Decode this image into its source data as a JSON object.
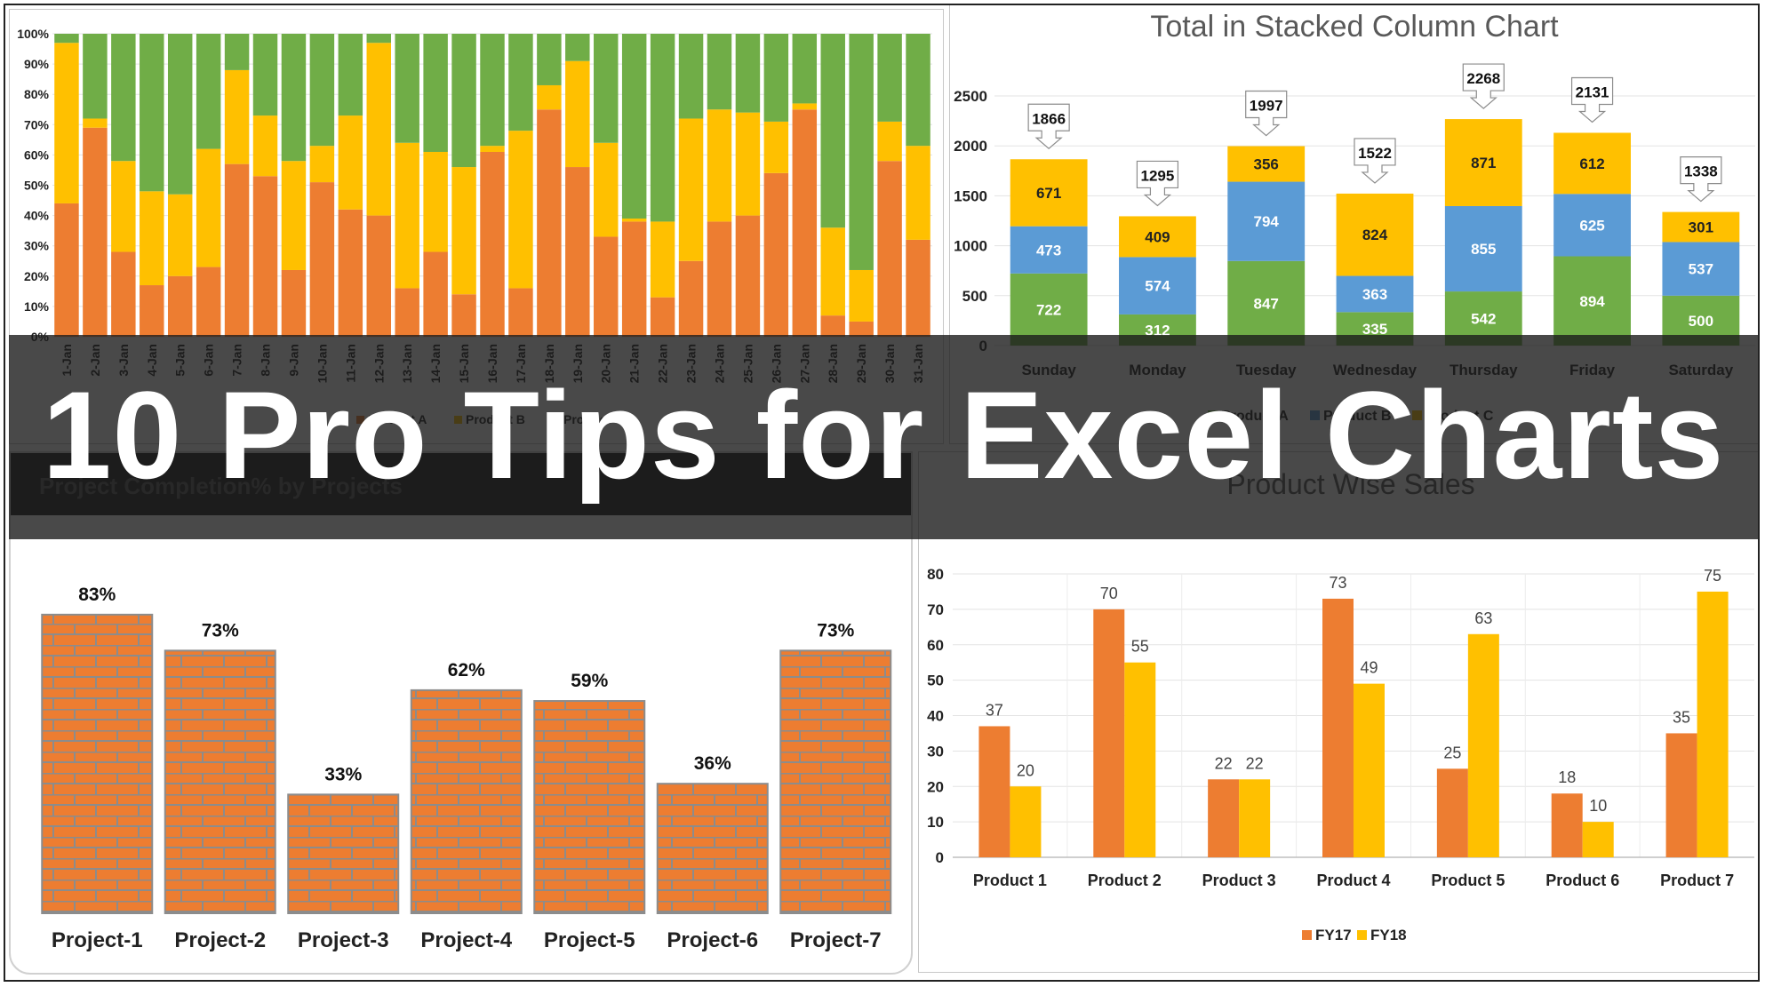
{
  "banner": {
    "title": "10 Pro Tips for Excel Charts"
  },
  "colors": {
    "orange": "#ED7D31",
    "yellow": "#FFC000",
    "green": "#70AD47",
    "blue": "#5B9BD5",
    "brick": "#ED7D31",
    "mortar": "#8C8C8C"
  },
  "chart_data": [
    {
      "type": "bar",
      "stacking": "percent",
      "title": "",
      "categories": [
        "1-Jan",
        "2-Jan",
        "3-Jan",
        "4-Jan",
        "5-Jan",
        "6-Jan",
        "7-Jan",
        "8-Jan",
        "9-Jan",
        "10-Jan",
        "11-Jan",
        "12-Jan",
        "13-Jan",
        "14-Jan",
        "15-Jan",
        "16-Jan",
        "17-Jan",
        "18-Jan",
        "19-Jan",
        "20-Jan",
        "21-Jan",
        "22-Jan",
        "23-Jan",
        "24-Jan",
        "25-Jan",
        "26-Jan",
        "27-Jan",
        "28-Jan",
        "29-Jan",
        "30-Jan",
        "31-Jan"
      ],
      "yticks": [
        "0%",
        "10%",
        "20%",
        "30%",
        "40%",
        "50%",
        "60%",
        "70%",
        "80%",
        "90%",
        "100%"
      ],
      "ylim": [
        0,
        100
      ],
      "legend_position": "bottom",
      "series": [
        {
          "name": "Product A",
          "color": "#ED7D31",
          "values": [
            44,
            69,
            28,
            17,
            20,
            23,
            57,
            53,
            22,
            51,
            42,
            40,
            16,
            28,
            14,
            61,
            16,
            75,
            56,
            33,
            38,
            13,
            25,
            38,
            40,
            54,
            75,
            7,
            5,
            58,
            32
          ]
        },
        {
          "name": "Product B",
          "color": "#FFC000",
          "values": [
            53,
            3,
            30,
            31,
            27,
            39,
            31,
            20,
            36,
            12,
            31,
            57,
            48,
            33,
            42,
            2,
            52,
            8,
            35,
            31,
            1,
            25,
            47,
            37,
            34,
            17,
            2,
            29,
            17,
            13,
            31
          ]
        },
        {
          "name": "Product C",
          "color": "#70AD47",
          "values": [
            3,
            28,
            42,
            52,
            53,
            38,
            12,
            27,
            42,
            37,
            27,
            3,
            36,
            39,
            44,
            37,
            32,
            17,
            9,
            36,
            61,
            62,
            28,
            25,
            26,
            29,
            23,
            64,
            78,
            29,
            37
          ]
        }
      ]
    },
    {
      "type": "bar",
      "stacking": "normal",
      "title": "Total in Stacked Column Chart",
      "categories": [
        "Sunday",
        "Monday",
        "Tuesday",
        "Wednesday",
        "Thursday",
        "Friday",
        "Saturday"
      ],
      "yticks": [
        "0",
        "500",
        "1000",
        "1500",
        "2000",
        "2500"
      ],
      "ylim": [
        0,
        2500
      ],
      "totals": [
        1866,
        1295,
        1997,
        1522,
        2268,
        2131,
        1338
      ],
      "legend_position": "bottom",
      "series": [
        {
          "name": "Product A",
          "color": "#70AD47",
          "values": [
            722,
            312,
            847,
            335,
            542,
            894,
            500
          ]
        },
        {
          "name": "Product B",
          "color": "#5B9BD5",
          "values": [
            473,
            574,
            794,
            363,
            855,
            625,
            537
          ]
        },
        {
          "name": "Product C",
          "color": "#FFC000",
          "values": [
            671,
            409,
            356,
            824,
            871,
            612,
            301
          ]
        }
      ]
    },
    {
      "type": "bar",
      "title": "Project Completion% by Projects",
      "categories": [
        "Project-1",
        "Project-2",
        "Project-3",
        "Project-4",
        "Project-5",
        "Project-6",
        "Project-7"
      ],
      "values": [
        83,
        73,
        33,
        62,
        59,
        36,
        73
      ],
      "labels": [
        "83%",
        "73%",
        "33%",
        "62%",
        "59%",
        "36%",
        "73%"
      ],
      "ylim": [
        0,
        100
      ]
    },
    {
      "type": "bar",
      "title": "Product Wise Sales",
      "categories": [
        "Product 1",
        "Product 2",
        "Product 3",
        "Product 4",
        "Product 5",
        "Product 6",
        "Product 7"
      ],
      "yticks": [
        "0",
        "10",
        "20",
        "30",
        "40",
        "50",
        "60",
        "70",
        "80"
      ],
      "ylim": [
        0,
        80
      ],
      "legend_position": "bottom",
      "series": [
        {
          "name": "FY17",
          "color": "#ED7D31",
          "values": [
            37,
            70,
            22,
            73,
            25,
            18,
            35
          ]
        },
        {
          "name": "FY18",
          "color": "#FFC000",
          "values": [
            20,
            55,
            22,
            49,
            63,
            10,
            75
          ]
        }
      ]
    }
  ]
}
